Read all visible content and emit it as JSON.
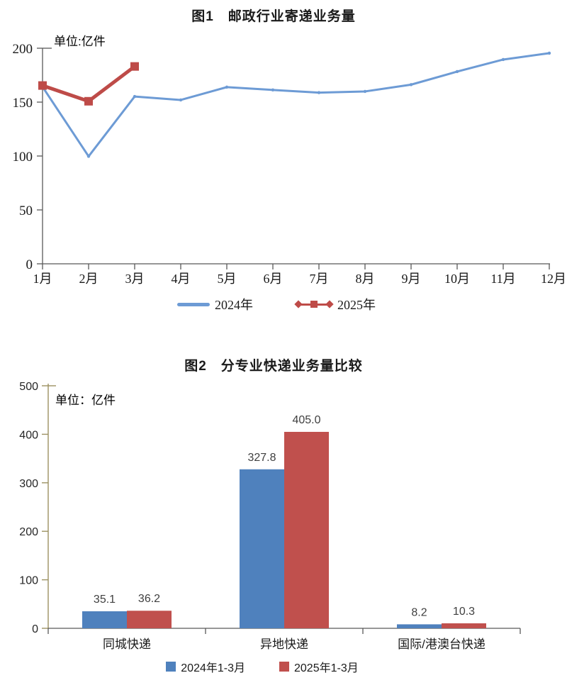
{
  "page": {
    "background": "#ffffff"
  },
  "chart_data": [
    {
      "id": "chart1",
      "type": "line",
      "title": "图1　邮政行业寄递业务量",
      "unit_label": "单位:亿件",
      "categories": [
        "1月",
        "2月",
        "3月",
        "4月",
        "5月",
        "6月",
        "7月",
        "8月",
        "9月",
        "10月",
        "11月",
        "12月"
      ],
      "ylim": [
        0,
        200
      ],
      "yticks": [
        0,
        50,
        100,
        150,
        200
      ],
      "grid": false,
      "legend_position": "bottom",
      "axis_color": "#595959",
      "tick_label_color": "#1a1a1a",
      "series": [
        {
          "name": "2024年",
          "color": "#6D9BD5",
          "marker": "dot",
          "values": [
            164.2,
            99.7,
            155.2,
            152.0,
            163.9,
            161.3,
            158.8,
            159.9,
            166.2,
            178.3,
            189.5,
            195.4
          ]
        },
        {
          "name": "2025年",
          "color": "#BE4B48",
          "marker": "square",
          "values": [
            165.4,
            150.8,
            183.1
          ]
        }
      ]
    },
    {
      "id": "chart2",
      "type": "bar",
      "title": "图2　分专业快递业务量比较",
      "unit_label": "单位：亿件",
      "categories": [
        "同城快递",
        "异地快递",
        "国际/港澳台快递"
      ],
      "ylim": [
        0,
        500
      ],
      "yticks": [
        0,
        100,
        200,
        300,
        400,
        500
      ],
      "grid": false,
      "legend_position": "bottom",
      "y_axis_color": "#9C9262",
      "baseline_color": "#595959",
      "data_label_color": "#3f3f3f",
      "series": [
        {
          "name": "2024年1-3月",
          "color": "#4F81BD",
          "values": [
            35.1,
            327.8,
            8.2
          ]
        },
        {
          "name": "2025年1-3月",
          "color": "#C0504D",
          "values": [
            36.2,
            405.0,
            10.3
          ]
        }
      ]
    }
  ]
}
